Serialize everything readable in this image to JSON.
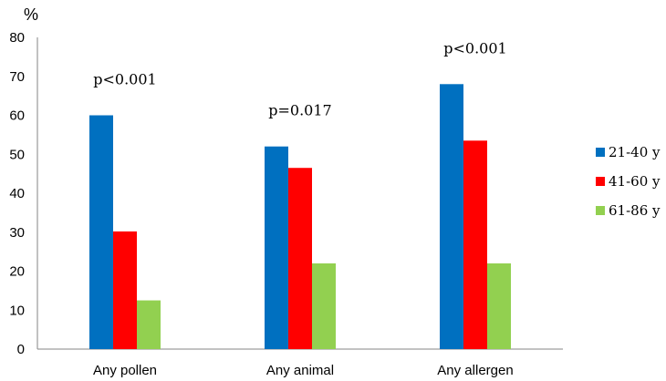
{
  "chart_data": {
    "type": "bar",
    "ylabel": "%",
    "ylim": [
      0,
      80
    ],
    "yticks": [
      0,
      10,
      20,
      30,
      40,
      50,
      60,
      70,
      80
    ],
    "grid": false,
    "legend_position": "right",
    "categories": [
      "Any pollen",
      "Any animal",
      "Any allergen"
    ],
    "series": [
      {
        "name": "21-40 y",
        "color": "#0070C0",
        "values": [
          60,
          52,
          68
        ]
      },
      {
        "name": "41-60 y",
        "color": "#FF0000",
        "values": [
          30.2,
          46.5,
          53.5
        ]
      },
      {
        "name": "61-86 y",
        "color": "#92D050",
        "values": [
          12.5,
          22,
          22
        ]
      }
    ],
    "annotations": [
      "p<0.001",
      "p=0.017",
      "p<0.001"
    ]
  }
}
